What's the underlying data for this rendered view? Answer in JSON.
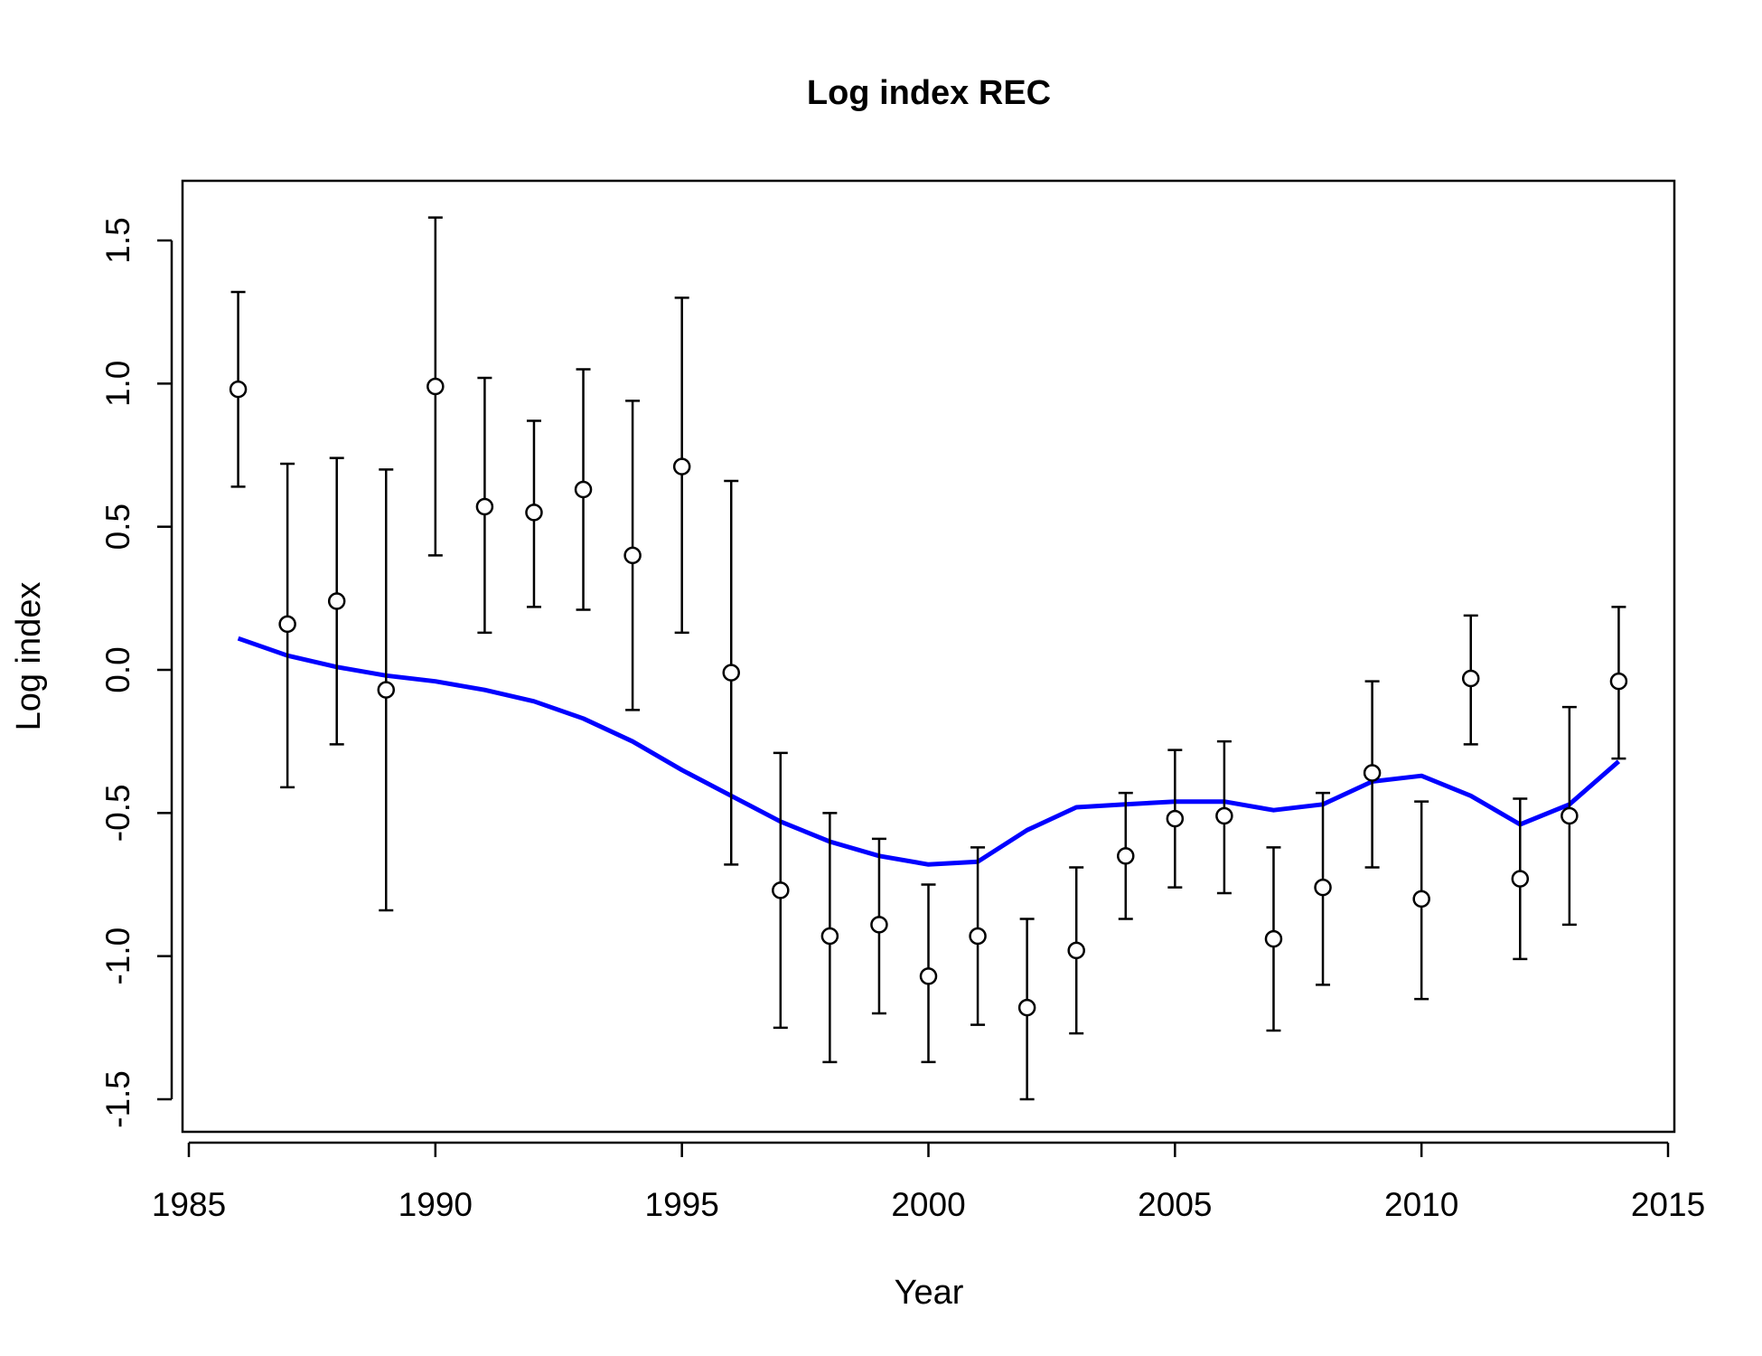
{
  "chart_data": {
    "type": "scatter",
    "title": "Log index REC",
    "xlabel": "Year",
    "ylabel": "Log index",
    "xlim": [
      1985,
      2015
    ],
    "ylim": [
      -1.5,
      1.5
    ],
    "x_ticks": [
      1985,
      1990,
      1995,
      2000,
      2005,
      2010,
      2015
    ],
    "x_tick_labels": [
      "1985",
      "1990",
      "1995",
      "2000",
      "2005",
      "2010",
      "2015"
    ],
    "y_ticks": [
      -1.5,
      -1.0,
      -0.5,
      0.0,
      0.5,
      1.0,
      1.5
    ],
    "y_tick_labels": [
      "-1.5",
      "-1.0",
      "-0.5",
      "0.0",
      "0.5",
      "1.0",
      "1.5"
    ],
    "grid": false,
    "series": [
      {
        "kind": "observed_with_error_bars",
        "marker": "open-circle",
        "color": "#000000",
        "points": [
          {
            "year": 1986,
            "value": 0.98,
            "lower": 0.64,
            "upper": 1.32
          },
          {
            "year": 1987,
            "value": 0.16,
            "lower": -0.41,
            "upper": 0.72
          },
          {
            "year": 1988,
            "value": 0.24,
            "lower": -0.26,
            "upper": 0.74
          },
          {
            "year": 1989,
            "value": -0.07,
            "lower": -0.84,
            "upper": 0.7
          },
          {
            "year": 1990,
            "value": 0.99,
            "lower": 0.4,
            "upper": 1.58
          },
          {
            "year": 1991,
            "value": 0.57,
            "lower": 0.13,
            "upper": 1.02
          },
          {
            "year": 1992,
            "value": 0.55,
            "lower": 0.22,
            "upper": 0.87
          },
          {
            "year": 1993,
            "value": 0.63,
            "lower": 0.21,
            "upper": 1.05
          },
          {
            "year": 1994,
            "value": 0.4,
            "lower": -0.14,
            "upper": 0.94
          },
          {
            "year": 1995,
            "value": 0.71,
            "lower": 0.13,
            "upper": 1.3
          },
          {
            "year": 1996,
            "value": -0.01,
            "lower": -0.68,
            "upper": 0.66
          },
          {
            "year": 1997,
            "value": -0.77,
            "lower": -1.25,
            "upper": -0.29
          },
          {
            "year": 1998,
            "value": -0.93,
            "lower": -1.37,
            "upper": -0.5
          },
          {
            "year": 1999,
            "value": -0.89,
            "lower": -1.2,
            "upper": -0.59
          },
          {
            "year": 2000,
            "value": -1.07,
            "lower": -1.37,
            "upper": -0.75
          },
          {
            "year": 2001,
            "value": -0.93,
            "lower": -1.24,
            "upper": -0.62
          },
          {
            "year": 2002,
            "value": -1.18,
            "lower": -1.5,
            "upper": -0.87
          },
          {
            "year": 2003,
            "value": -0.98,
            "lower": -1.27,
            "upper": -0.69
          },
          {
            "year": 2004,
            "value": -0.65,
            "lower": -0.87,
            "upper": -0.43
          },
          {
            "year": 2005,
            "value": -0.52,
            "lower": -0.76,
            "upper": -0.28
          },
          {
            "year": 2006,
            "value": -0.51,
            "lower": -0.78,
            "upper": -0.25
          },
          {
            "year": 2007,
            "value": -0.94,
            "lower": -1.26,
            "upper": -0.62
          },
          {
            "year": 2008,
            "value": -0.76,
            "lower": -1.1,
            "upper": -0.43
          },
          {
            "year": 2009,
            "value": -0.36,
            "lower": -0.69,
            "upper": -0.04
          },
          {
            "year": 2010,
            "value": -0.8,
            "lower": -1.15,
            "upper": -0.46
          },
          {
            "year": 2011,
            "value": -0.03,
            "lower": -0.26,
            "upper": 0.19
          },
          {
            "year": 2012,
            "value": -0.73,
            "lower": -1.01,
            "upper": -0.45
          },
          {
            "year": 2013,
            "value": -0.51,
            "lower": -0.89,
            "upper": -0.13
          },
          {
            "year": 2014,
            "value": -0.04,
            "lower": -0.31,
            "upper": 0.22
          }
        ]
      },
      {
        "kind": "fitted_line",
        "color": "#0000ff",
        "x": [
          1986,
          1987,
          1988,
          1989,
          1990,
          1991,
          1992,
          1993,
          1994,
          1995,
          1996,
          1997,
          1998,
          1999,
          2000,
          2001,
          2002,
          2003,
          2004,
          2005,
          2006,
          2007,
          2008,
          2009,
          2010,
          2011,
          2012,
          2013,
          2014
        ],
        "values": [
          0.11,
          0.05,
          0.01,
          -0.02,
          -0.04,
          -0.07,
          -0.11,
          -0.17,
          -0.25,
          -0.35,
          -0.44,
          -0.53,
          -0.6,
          -0.65,
          -0.68,
          -0.67,
          -0.56,
          -0.48,
          -0.47,
          -0.46,
          -0.46,
          -0.49,
          -0.47,
          -0.39,
          -0.37,
          -0.44,
          -0.54,
          -0.47,
          -0.32
        ]
      }
    ]
  }
}
